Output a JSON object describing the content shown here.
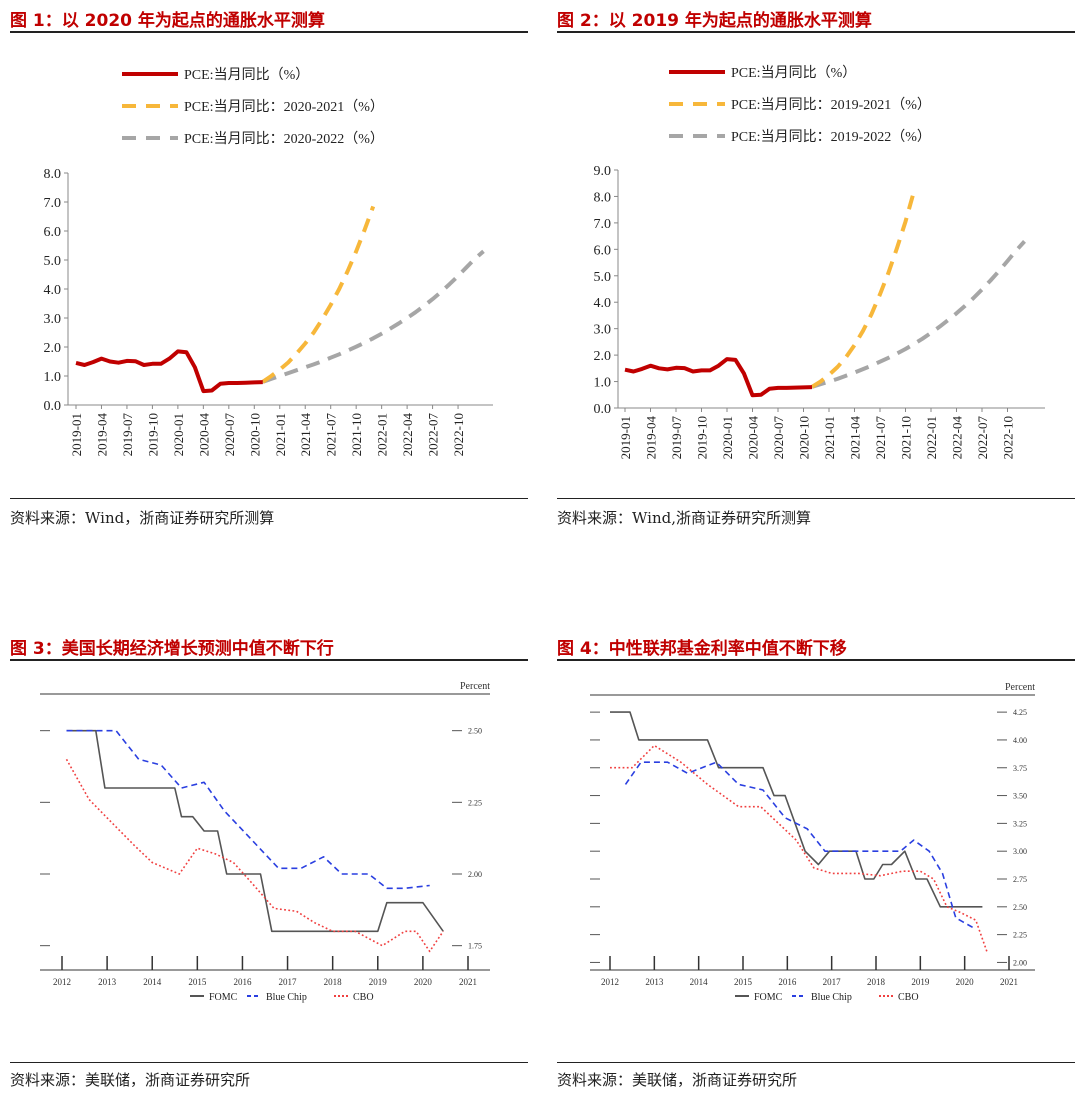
{
  "colors": {
    "title_red": "#c00000",
    "pce_red": "#c00000",
    "orange": "#f7b73a",
    "gray": "#a6a6a6",
    "fomc": "#555555",
    "bluechip": "#2a3fe0",
    "cbo": "#f04040"
  },
  "figures": [
    {
      "title": "图 1：以 2020 年为起点的通胀水平测算",
      "source": "资料来源：Wind，浙商证券研究所测算"
    },
    {
      "title": "图 2：以 2019 年为起点的通胀水平测算",
      "source": "资料来源：Wind,浙商证券研究所测算"
    },
    {
      "title": "图 3：美国长期经济增长预测中值不断下行",
      "source": "资料来源：美联储，浙商证券研究所"
    },
    {
      "title": "图 4：中性联邦基金利率中值不断下移",
      "source": "资料来源：美联储，浙商证券研究所"
    }
  ],
  "chart_data": [
    {
      "type": "line",
      "title": "图 1：以 2020 年为起点的通胀水平测算",
      "ylim": [
        0,
        8
      ],
      "ytick_labels": [
        "0.0",
        "1.0",
        "2.0",
        "3.0",
        "4.0",
        "5.0",
        "6.0",
        "7.0",
        "8.0"
      ],
      "x_tick_labels": [
        "2019-01",
        "2019-04",
        "2019-07",
        "2019-10",
        "2020-01",
        "2020-04",
        "2020-07",
        "2020-10",
        "2021-01",
        "2021-04",
        "2021-07",
        "2021-10",
        "2022-01",
        "2022-04",
        "2022-07",
        "2022-10"
      ],
      "series": [
        {
          "name": "PCE:当月同比（%）",
          "style": "solid",
          "values": [
            1.45,
            1.38,
            1.48,
            1.6,
            1.5,
            1.46,
            1.52,
            1.51,
            1.38,
            1.42,
            1.42,
            1.6,
            1.85,
            1.82,
            1.3,
            0.48,
            0.5,
            0.73,
            0.76,
            0.76,
            0.77,
            0.78,
            0.79
          ]
        },
        {
          "name": "PCE:当月同比：2020-2021（%）",
          "style": "dashed",
          "start_index": 22,
          "values": [
            0.8,
            1.0,
            1.22,
            1.47,
            1.78,
            2.12,
            2.5,
            2.95,
            3.45,
            4.0,
            4.62,
            5.3,
            6.05,
            6.85
          ]
        },
        {
          "name": "PCE:当月同比：2020-2022（%）",
          "style": "dashed",
          "start_index": 22,
          "values": [
            0.8,
            0.9,
            1.0,
            1.1,
            1.2,
            1.3,
            1.4,
            1.51,
            1.63,
            1.75,
            1.88,
            2.01,
            2.15,
            2.3,
            2.46,
            2.63,
            2.81,
            3.0,
            3.2,
            3.42,
            3.65,
            3.9,
            4.17,
            4.45,
            4.75,
            5.05,
            5.3
          ]
        }
      ]
    },
    {
      "type": "line",
      "title": "图 2：以 2019 年为起点的通胀水平测算",
      "ylim": [
        0,
        9
      ],
      "ytick_labels": [
        "0.0",
        "1.0",
        "2.0",
        "3.0",
        "4.0",
        "5.0",
        "6.0",
        "7.0",
        "8.0",
        "9.0"
      ],
      "x_tick_labels": [
        "2019-01",
        "2019-04",
        "2019-07",
        "2019-10",
        "2020-01",
        "2020-04",
        "2020-07",
        "2020-10",
        "2021-01",
        "2021-04",
        "2021-07",
        "2021-10",
        "2022-01",
        "2022-04",
        "2022-07",
        "2022-10"
      ],
      "series": [
        {
          "name": "PCE:当月同比（%）",
          "style": "solid",
          "values": [
            1.45,
            1.38,
            1.48,
            1.6,
            1.5,
            1.46,
            1.52,
            1.51,
            1.38,
            1.42,
            1.42,
            1.6,
            1.85,
            1.82,
            1.3,
            0.48,
            0.5,
            0.73,
            0.76,
            0.76,
            0.77,
            0.78,
            0.79
          ]
        },
        {
          "name": "PCE:当月同比：2019-2021（%）",
          "style": "dashed",
          "start_index": 22,
          "values": [
            0.8,
            1.0,
            1.25,
            1.55,
            1.92,
            2.38,
            2.92,
            3.55,
            4.3,
            5.12,
            6.05,
            7.05,
            8.2
          ]
        },
        {
          "name": "PCE:当月同比：2019-2022（%）",
          "style": "dashed",
          "start_index": 22,
          "values": [
            0.8,
            0.9,
            1.0,
            1.1,
            1.22,
            1.34,
            1.47,
            1.6,
            1.75,
            1.9,
            2.06,
            2.23,
            2.42,
            2.62,
            2.84,
            3.07,
            3.32,
            3.58,
            3.86,
            4.16,
            4.48,
            4.82,
            5.18,
            5.56,
            5.95,
            6.3
          ]
        }
      ]
    },
    {
      "type": "line",
      "title": "图 3：美国长期经济增长预测中值不断下行",
      "unit_label": "Percent",
      "ylim": [
        1.7,
        2.6
      ],
      "y_ticks": [
        1.75,
        2.0,
        2.25,
        2.5
      ],
      "ytick_labels": [
        "1.75",
        "2.00",
        "2.25",
        "2.50"
      ],
      "xlim": [
        2012,
        2021
      ],
      "x_tick_labels": [
        "2012",
        "2013",
        "2014",
        "2015",
        "2016",
        "2017",
        "2018",
        "2019",
        "2020",
        "2021"
      ],
      "legend": [
        "FOMC",
        "Blue Chip",
        "CBO"
      ],
      "series": [
        {
          "name": "FOMC",
          "style": "solid",
          "x": [
            2012.1,
            2012.75,
            2012.95,
            2014.5,
            2014.65,
            2014.9,
            2015.15,
            2015.45,
            2015.65,
            2016.4,
            2016.65,
            2019.0,
            2019.2,
            2020.0,
            2020.45
          ],
          "y": [
            2.5,
            2.5,
            2.3,
            2.3,
            2.2,
            2.2,
            2.15,
            2.15,
            2.0,
            2.0,
            1.8,
            1.8,
            1.9,
            1.9,
            1.8
          ]
        },
        {
          "name": "Blue Chip",
          "style": "dashed",
          "x": [
            2012.1,
            2013.2,
            2013.7,
            2014.2,
            2014.65,
            2015.15,
            2015.6,
            2016.2,
            2016.8,
            2017.3,
            2017.8,
            2018.2,
            2018.8,
            2019.2,
            2019.6,
            2020.15
          ],
          "y": [
            2.5,
            2.5,
            2.4,
            2.38,
            2.3,
            2.32,
            2.22,
            2.12,
            2.02,
            2.02,
            2.06,
            2.0,
            2.0,
            1.95,
            1.95,
            1.96
          ]
        },
        {
          "name": "CBO",
          "style": "dotted",
          "x": [
            2012.1,
            2012.6,
            2013.1,
            2013.6,
            2014.0,
            2014.6,
            2015.0,
            2015.4,
            2015.8,
            2016.2,
            2016.7,
            2017.2,
            2017.6,
            2018.0,
            2018.5,
            2019.1,
            2019.6,
            2019.85,
            2020.15,
            2020.45
          ],
          "y": [
            2.4,
            2.26,
            2.18,
            2.1,
            2.04,
            2.0,
            2.09,
            2.07,
            2.04,
            1.97,
            1.88,
            1.87,
            1.83,
            1.8,
            1.8,
            1.75,
            1.8,
            1.8,
            1.73,
            1.8
          ]
        }
      ]
    },
    {
      "type": "line",
      "title": "图 4：中性联邦基金利率中值不断下移",
      "unit_label": "Percent",
      "ylim": [
        1.95,
        4.35
      ],
      "y_ticks": [
        2.0,
        2.25,
        2.5,
        2.75,
        3.0,
        3.25,
        3.5,
        3.75,
        4.0,
        4.25
      ],
      "ytick_labels": [
        "2.00",
        "2.25",
        "2.50",
        "2.75",
        "3.00",
        "3.25",
        "3.50",
        "3.75",
        "4.00",
        "4.25"
      ],
      "xlim": [
        2012,
        2021
      ],
      "x_tick_labels": [
        "2012",
        "2013",
        "2014",
        "2015",
        "2016",
        "2017",
        "2018",
        "2019",
        "2020",
        "2021"
      ],
      "legend": [
        "FOMC",
        "Blue Chip",
        "CBO"
      ],
      "series": [
        {
          "name": "FOMC",
          "style": "solid",
          "x": [
            2012.0,
            2012.45,
            2012.65,
            2014.2,
            2014.45,
            2015.45,
            2015.7,
            2015.95,
            2016.4,
            2016.7,
            2016.95,
            2017.55,
            2017.75,
            2017.95,
            2018.15,
            2018.35,
            2018.65,
            2018.9,
            2019.15,
            2019.45,
            2020.4
          ],
          "y": [
            4.25,
            4.25,
            4.0,
            4.0,
            3.75,
            3.75,
            3.5,
            3.5,
            3.0,
            2.88,
            3.0,
            3.0,
            2.75,
            2.75,
            2.88,
            2.88,
            3.0,
            2.75,
            2.75,
            2.5,
            2.5
          ]
        },
        {
          "name": "Blue Chip",
          "style": "dashed",
          "x": [
            2012.35,
            2012.7,
            2013.3,
            2013.75,
            2014.4,
            2014.9,
            2015.45,
            2015.95,
            2016.45,
            2016.85,
            2017.45,
            2018.0,
            2018.55,
            2018.85,
            2019.2,
            2019.5,
            2019.8,
            2020.25
          ],
          "y": [
            3.6,
            3.8,
            3.8,
            3.7,
            3.8,
            3.6,
            3.55,
            3.3,
            3.2,
            3.0,
            3.0,
            3.0,
            3.0,
            3.1,
            3.0,
            2.8,
            2.4,
            2.3
          ]
        },
        {
          "name": "CBO",
          "style": "dotted",
          "x": [
            2012.0,
            2012.5,
            2013.0,
            2013.6,
            2014.2,
            2014.9,
            2015.4,
            2015.8,
            2016.2,
            2016.6,
            2017.0,
            2017.6,
            2018.1,
            2018.6,
            2019.0,
            2019.3,
            2019.6,
            2019.9,
            2020.25,
            2020.5
          ],
          "y": [
            3.75,
            3.75,
            3.95,
            3.8,
            3.6,
            3.4,
            3.4,
            3.25,
            3.1,
            2.85,
            2.8,
            2.8,
            2.78,
            2.82,
            2.82,
            2.75,
            2.5,
            2.45,
            2.38,
            2.1
          ]
        }
      ]
    }
  ]
}
